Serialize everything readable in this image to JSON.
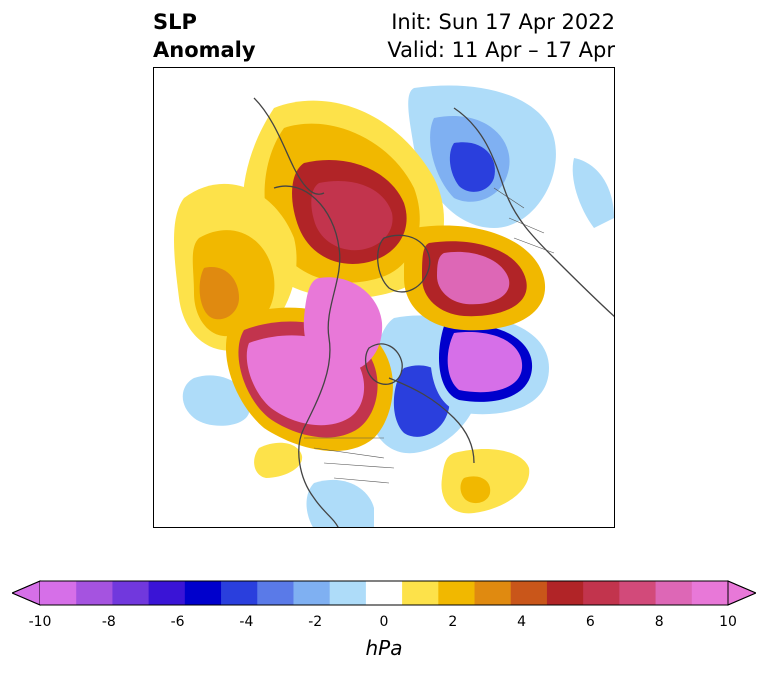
{
  "title": {
    "line1_left": "SLP",
    "line2_left": "Anomaly",
    "line1_right": "Init: Sun 17 Apr 2022",
    "line2_right": "Valid: 11 Apr – 17 Apr"
  },
  "colorbar": {
    "unit": "hPa",
    "ticks": [
      "-10",
      "-8",
      "-6",
      "-4",
      "-2",
      "0",
      "2",
      "4",
      "6",
      "8",
      "10"
    ],
    "levels": [
      -10,
      -9,
      -8,
      -7,
      -6,
      -5,
      -4,
      -3,
      -2,
      -1,
      1,
      2,
      3,
      4,
      5,
      6,
      7,
      8,
      9,
      10
    ],
    "colors": [
      "#d66fe8",
      "#a553e0",
      "#7138dd",
      "#3a14d6",
      "#0000cc",
      "#2a3fdd",
      "#5a7ae8",
      "#7fb0f2",
      "#aedcf9",
      "#ffffff",
      "#fde24a",
      "#f1b800",
      "#e08a10",
      "#c9561a",
      "#b12427",
      "#c2344d",
      "#d24a7a",
      "#dd67b6",
      "#e878d8"
    ],
    "extend_low_color": "#d66fe8",
    "extend_high_color": "#e878d8"
  },
  "map": {
    "projection": "north-polar-stereographic",
    "field": "sea-level-pressure-anomaly"
  }
}
